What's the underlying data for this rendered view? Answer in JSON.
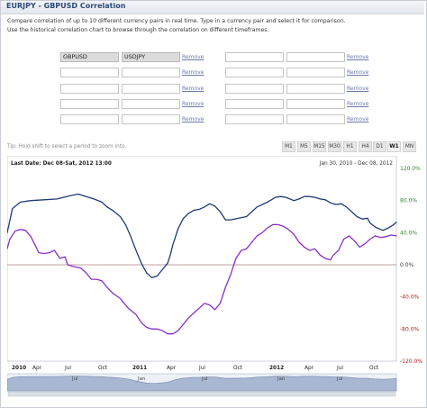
{
  "title": "EURJPY - GBPUSD Correlation",
  "description": [
    "Compare correlation of up to 10 different currency pairs in real time. Type in a currency pair and select it for comparison.",
    "Use the historical correlation chart to browse through the correlation on different timeframes."
  ],
  "pairs": [
    {
      "left": "GBPUSD",
      "right": "USDJPY"
    },
    {
      "left": "",
      "right": ""
    },
    {
      "left": "",
      "right": ""
    },
    {
      "left": "",
      "right": ""
    },
    {
      "left": "",
      "right": ""
    },
    {
      "left": "",
      "right": ""
    },
    {
      "left": "",
      "right": ""
    },
    {
      "left": "",
      "right": ""
    },
    {
      "left": "",
      "right": ""
    },
    {
      "left": "",
      "right": ""
    }
  ],
  "remove_label": "Remove",
  "tip": "Tip: Hold shift to select a period to zoom into.",
  "timeframes": [
    "M1",
    "M5",
    "M15",
    "M30",
    "H1",
    "H4",
    "D1",
    "W1",
    "MN"
  ],
  "active_timeframe": "W1",
  "last_date_label": "Last Date: Dec 08-Sat, 2012 13:00",
  "date_range": "Jan 30, 2010 - Dec 08, 2012",
  "chart_data": {
    "type": "line",
    "x_ticks": [
      "2010",
      "Apr",
      "Jul",
      "Oct",
      "2011",
      "Apr",
      "Jul",
      "Oct",
      "2012",
      "Apr",
      "Jul",
      "Oct"
    ],
    "y_ticks": [
      "120.0%",
      "80.0%",
      "40.0%",
      "0.0%",
      "-40.0%",
      "-80.0%",
      "-120.0%"
    ],
    "ylim": [
      -120,
      120
    ],
    "x_unit": "weeks since Jan 30, 2010",
    "series": [
      {
        "color": "#1f3a78",
        "points": [
          [
            0,
            40
          ],
          [
            2,
            70
          ],
          [
            5,
            78
          ],
          [
            9,
            80
          ],
          [
            14,
            81
          ],
          [
            19,
            82
          ],
          [
            24,
            86
          ],
          [
            27,
            88
          ],
          [
            30,
            85
          ],
          [
            33,
            82
          ],
          [
            36,
            78
          ],
          [
            38,
            72
          ],
          [
            40,
            68
          ],
          [
            43,
            60
          ],
          [
            45,
            50
          ],
          [
            47,
            35
          ],
          [
            49,
            18
          ],
          [
            51,
            2
          ],
          [
            53,
            -10
          ],
          [
            55,
            -16
          ],
          [
            57,
            -14
          ],
          [
            59,
            -6
          ],
          [
            61,
            2
          ],
          [
            62,
            12
          ],
          [
            63,
            25
          ],
          [
            65,
            45
          ],
          [
            67,
            58
          ],
          [
            69,
            64
          ],
          [
            71,
            68
          ],
          [
            73,
            69
          ],
          [
            75,
            72
          ],
          [
            77,
            76
          ],
          [
            79,
            73
          ],
          [
            81,
            66
          ],
          [
            83,
            56
          ],
          [
            85,
            56
          ],
          [
            88,
            58
          ],
          [
            91,
            60
          ],
          [
            93,
            66
          ],
          [
            95,
            72
          ],
          [
            97,
            75
          ],
          [
            99,
            78
          ],
          [
            102,
            84
          ],
          [
            104,
            85
          ],
          [
            106,
            84
          ],
          [
            109,
            80
          ],
          [
            111,
            82
          ],
          [
            113,
            85
          ],
          [
            115,
            85
          ],
          [
            117,
            84
          ],
          [
            119,
            82
          ],
          [
            121,
            81
          ],
          [
            123,
            77
          ],
          [
            125,
            75
          ],
          [
            127,
            76
          ],
          [
            129,
            72
          ],
          [
            131,
            66
          ],
          [
            133,
            60
          ],
          [
            135,
            57
          ],
          [
            137,
            58
          ],
          [
            138,
            52
          ],
          [
            140,
            47
          ],
          [
            142,
            44
          ],
          [
            143,
            43
          ],
          [
            145,
            46
          ],
          [
            147,
            50
          ],
          [
            148,
            53
          ]
        ]
      },
      {
        "color": "#8a2fc8",
        "points": [
          [
            0,
            20
          ],
          [
            1,
            32
          ],
          [
            3,
            42
          ],
          [
            5,
            44
          ],
          [
            7,
            43
          ],
          [
            9,
            35
          ],
          [
            11,
            22
          ],
          [
            12,
            15
          ],
          [
            14,
            14
          ],
          [
            16,
            15
          ],
          [
            18,
            18
          ],
          [
            20,
            8
          ],
          [
            22,
            10
          ],
          [
            23,
            0
          ],
          [
            25,
            -2
          ],
          [
            28,
            -4
          ],
          [
            30,
            -10
          ],
          [
            32,
            -18
          ],
          [
            34,
            -18
          ],
          [
            36,
            -20
          ],
          [
            38,
            -28
          ],
          [
            40,
            -35
          ],
          [
            43,
            -42
          ],
          [
            46,
            -54
          ],
          [
            49,
            -62
          ],
          [
            51,
            -72
          ],
          [
            53,
            -78
          ],
          [
            55,
            -80
          ],
          [
            57,
            -80
          ],
          [
            59,
            -82
          ],
          [
            61,
            -86
          ],
          [
            63,
            -86
          ],
          [
            65,
            -82
          ],
          [
            67,
            -74
          ],
          [
            69,
            -66
          ],
          [
            71,
            -60
          ],
          [
            73,
            -54
          ],
          [
            75,
            -48
          ],
          [
            77,
            -50
          ],
          [
            79,
            -56
          ],
          [
            81,
            -48
          ],
          [
            83,
            -28
          ],
          [
            85,
            -12
          ],
          [
            87,
            8
          ],
          [
            89,
            18
          ],
          [
            91,
            20
          ],
          [
            93,
            28
          ],
          [
            95,
            36
          ],
          [
            97,
            40
          ],
          [
            99,
            46
          ],
          [
            101,
            50
          ],
          [
            103,
            50
          ],
          [
            105,
            48
          ],
          [
            107,
            44
          ],
          [
            109,
            38
          ],
          [
            111,
            28
          ],
          [
            113,
            22
          ],
          [
            115,
            18
          ],
          [
            117,
            20
          ],
          [
            119,
            12
          ],
          [
            121,
            8
          ],
          [
            123,
            6
          ],
          [
            124,
            12
          ],
          [
            126,
            18
          ],
          [
            128,
            32
          ],
          [
            130,
            36
          ],
          [
            132,
            30
          ],
          [
            134,
            22
          ],
          [
            136,
            26
          ],
          [
            138,
            32
          ],
          [
            140,
            36
          ],
          [
            142,
            34
          ],
          [
            144,
            35
          ],
          [
            146,
            37
          ],
          [
            148,
            36
          ]
        ]
      }
    ]
  },
  "navigator_labels": [
    "Jul",
    "Jan",
    "Jul",
    "Jan",
    "Jul"
  ]
}
